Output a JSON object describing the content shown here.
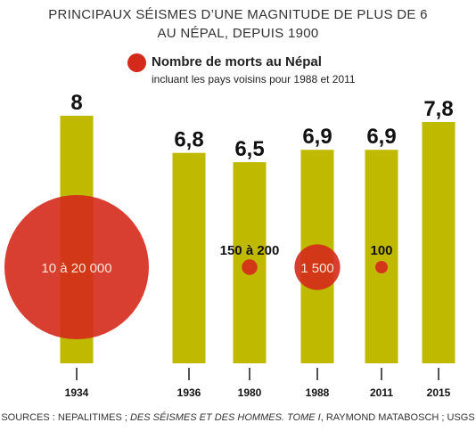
{
  "title_line1": "PRINCIPAUX SÉISMES D’UNE MAGNITUDE DE PLUS DE 6",
  "title_line2": "AU NÉPAL, DEPUIS 1900",
  "legend": {
    "title": "Nombre de morts au Népal",
    "subtitle": "incluant les pays voisins pour 1988 et 2011"
  },
  "source": {
    "prefix": "SOURCES : NEPALITIMES ; ",
    "italic": "DES SÉISMES ET DES HOMMES. TOME I",
    "suffix": ", RAYMOND MATABOSCH ; USGS"
  },
  "colors": {
    "bar": "#bfba00",
    "deaths": "#d42a1b",
    "text": "#111111",
    "tick": "#555555"
  },
  "chart_data": {
    "type": "bar",
    "categories": [
      "1934",
      "1936",
      "1980",
      "1988",
      "2011",
      "2015"
    ],
    "series": [
      {
        "name": "Magnitude",
        "values": [
          8,
          6.8,
          6.5,
          6.9,
          6.9,
          7.8
        ],
        "labels": [
          "8",
          "6,8",
          "6,5",
          "6,9",
          "6,9",
          "7,8"
        ]
      }
    ],
    "deaths": [
      {
        "category": "1934",
        "label": "10 à 20 000",
        "value": 15000
      },
      {
        "category": "1980",
        "label": "150 à 200",
        "value": 175
      },
      {
        "category": "1988",
        "label": "1 500",
        "value": 1500
      },
      {
        "category": "2011",
        "label": "100",
        "value": 100
      }
    ],
    "grid": false
  }
}
